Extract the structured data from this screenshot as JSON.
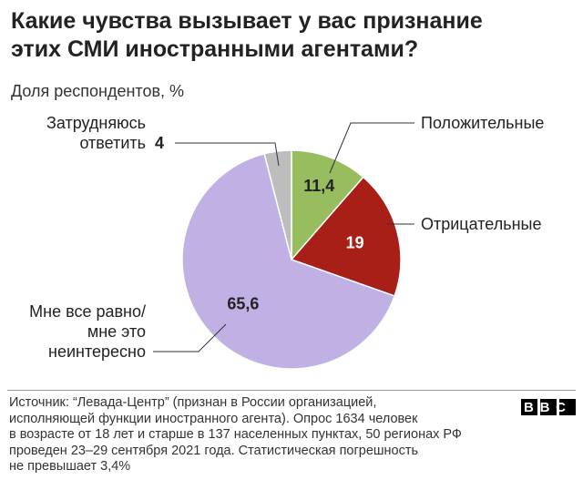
{
  "chart_data": {
    "type": "pie",
    "title": "Какие чувства вызывает у вас признание\nэтих СМИ иностранными агентами?",
    "subtitle": "Доля респондентов, %",
    "categories": [
      "Положительные",
      "Отрицательные",
      "Мне все равно/\nмне это\nнеинтересно",
      "Затрудняюсь\nответить"
    ],
    "values": [
      11.4,
      19,
      65.6,
      4
    ],
    "value_labels": [
      "11,4",
      "19",
      "65,6",
      "4"
    ],
    "colors": [
      "#98bd5f",
      "#a81f18",
      "#c0b0e4",
      "#bdbdbd"
    ]
  },
  "footer": {
    "source": "Источник: “Левада-Центр” (признан в России организацией,\nисполняющей функции иностранного агента). Опрос 1634 человек\nв возрасте от 18 лет и старше в 137 населенных пунктах, 50 регионах РФ\nпроведен 23–29 сентября 2021 года. Статистическая погрешность\nне превышает 3,4%",
    "logo": "BBC"
  }
}
